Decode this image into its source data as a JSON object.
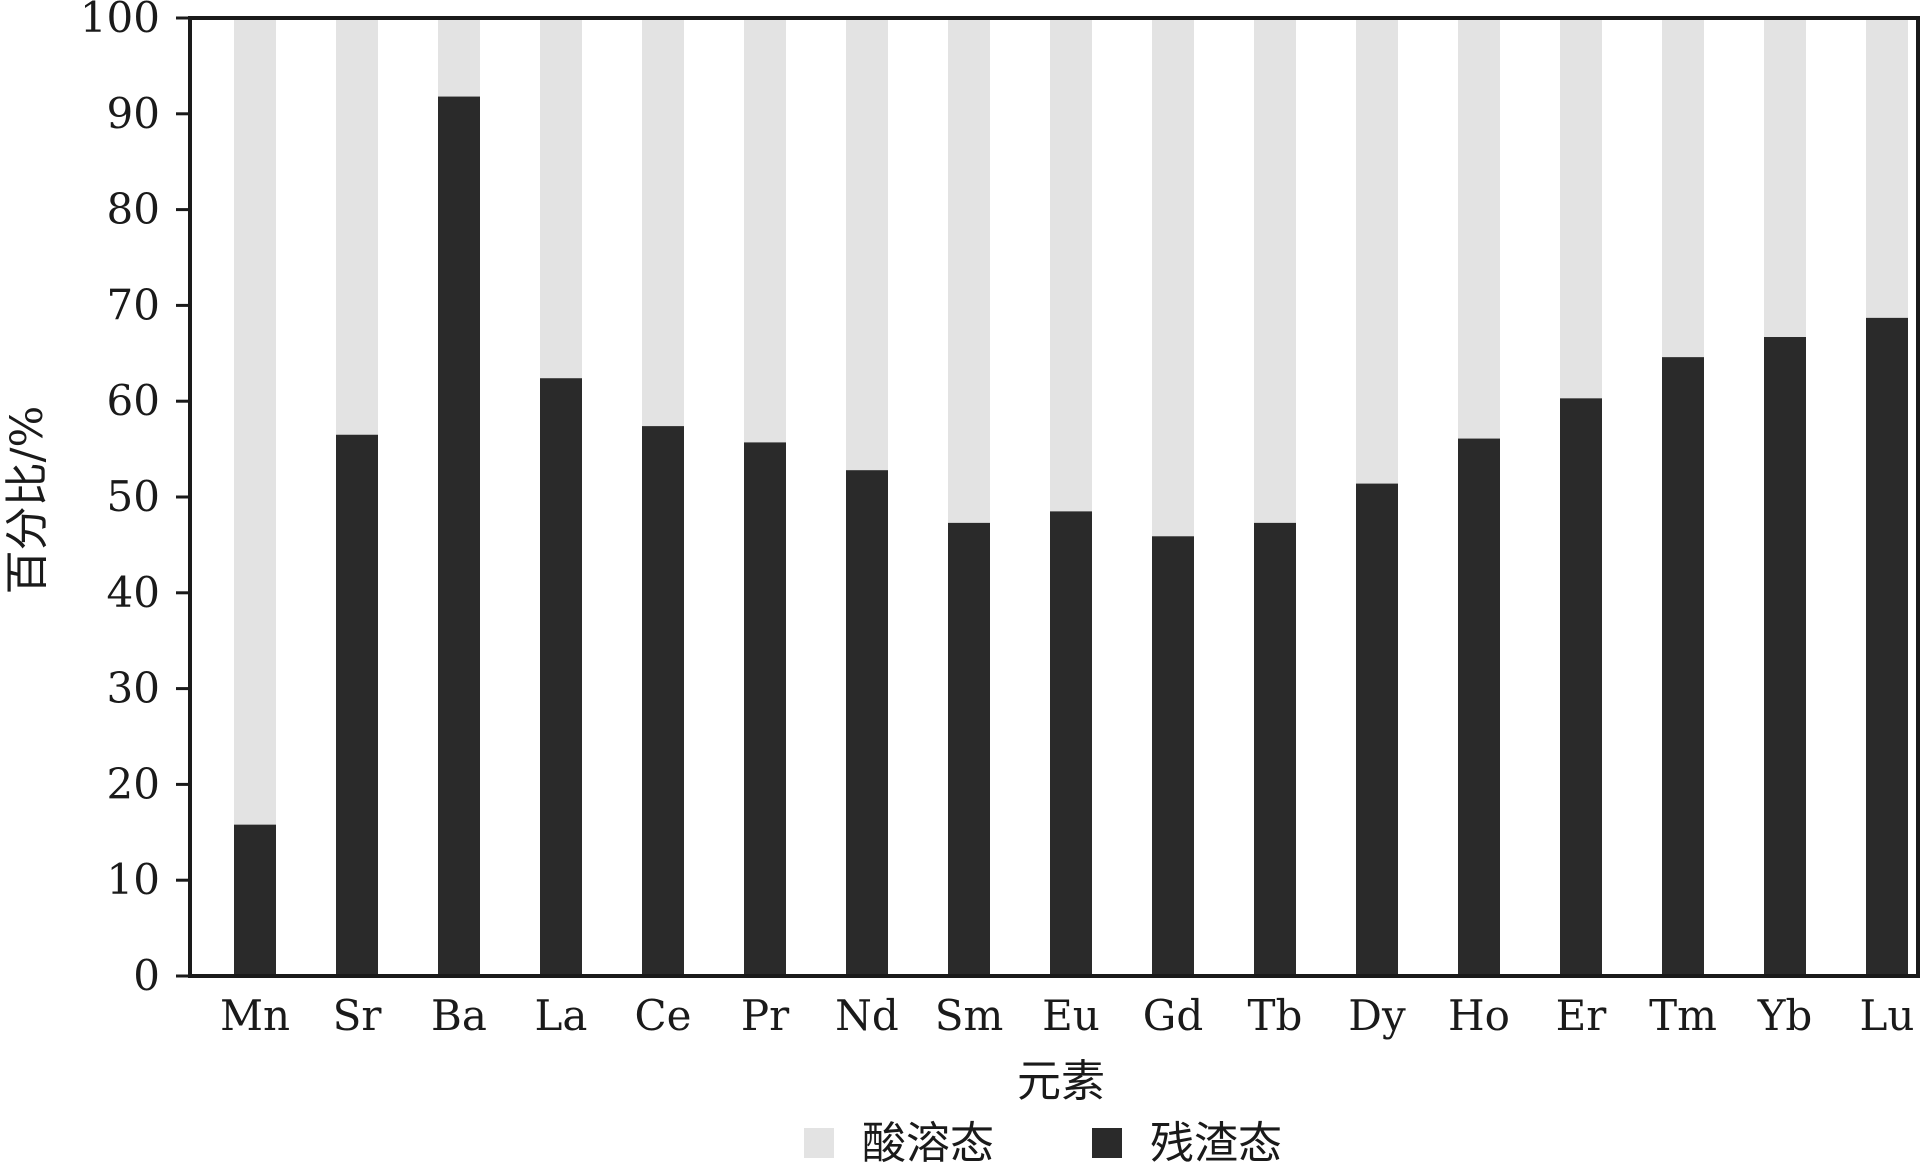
{
  "chart_data": {
    "type": "bar",
    "stacked": true,
    "categories": [
      "Mn",
      "Sr",
      "Ba",
      "La",
      "Ce",
      "Pr",
      "Nd",
      "Sm",
      "Eu",
      "Gd",
      "Tb",
      "Dy",
      "Ho",
      "Er",
      "Tm",
      "Yb",
      "Lu"
    ],
    "series": [
      {
        "name": "残渣态",
        "color": "#2a2a2a",
        "values": [
          15.8,
          56.5,
          91.8,
          62.4,
          57.4,
          55.7,
          52.8,
          47.3,
          48.5,
          45.9,
          47.3,
          51.4,
          56.1,
          60.3,
          64.6,
          66.7,
          68.7
        ]
      },
      {
        "name": "酸溶态",
        "color": "#e3e3e3",
        "values": [
          84.2,
          43.5,
          8.2,
          37.6,
          42.6,
          44.3,
          47.2,
          52.7,
          51.5,
          54.1,
          52.7,
          48.6,
          43.9,
          39.7,
          35.4,
          33.3,
          31.3
        ]
      }
    ],
    "xlabel": "元素",
    "ylabel": "百分比/%",
    "ylim": [
      0,
      100
    ],
    "yticks": [
      0,
      10,
      20,
      30,
      40,
      50,
      60,
      70,
      80,
      90,
      100
    ],
    "legend_entries": [
      "酸溶态",
      "残渣态"
    ],
    "legend_position": "bottom-center",
    "grid": false
  }
}
